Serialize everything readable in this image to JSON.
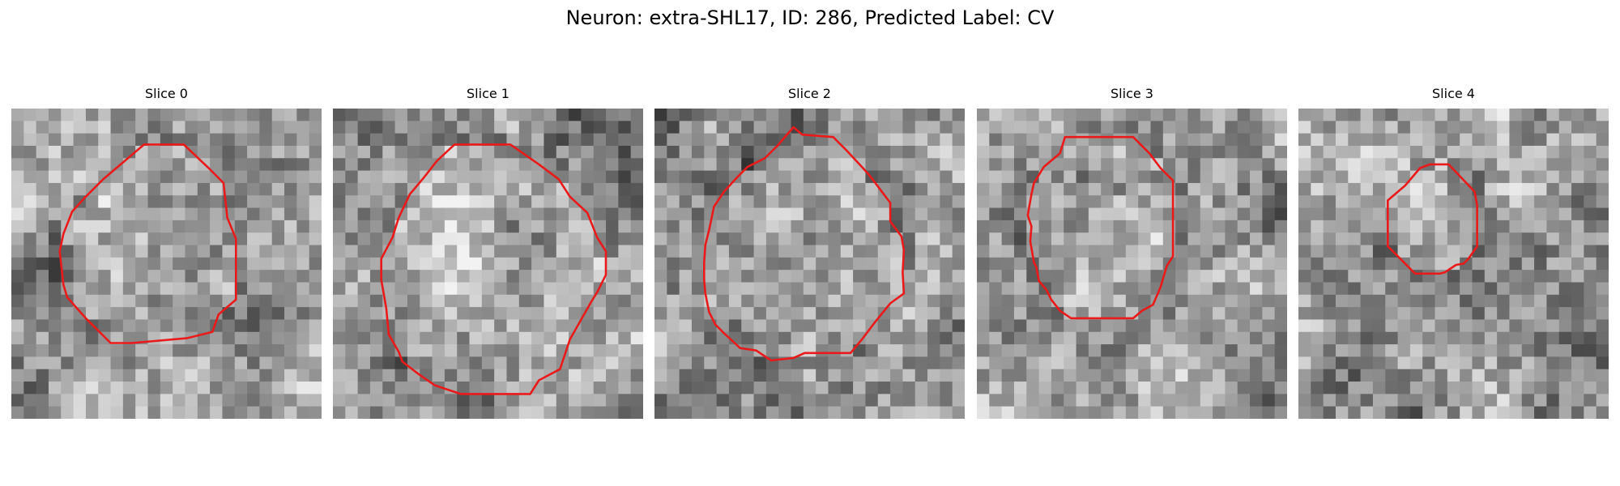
{
  "figure": {
    "title": "Neuron: extra-SHL17, ID: 286, Predicted Label: CV"
  },
  "panels": [
    {
      "title": "Slice 0",
      "seed": 11,
      "contour": [
        [
          10.7,
          2.9
        ],
        [
          13.9,
          2.9
        ],
        [
          15.9,
          4.8
        ],
        [
          17.1,
          6.0
        ],
        [
          17.4,
          8.8
        ],
        [
          18.1,
          10.5
        ],
        [
          18.1,
          15.4
        ],
        [
          16.7,
          16.6
        ],
        [
          16.2,
          18.0
        ],
        [
          14.2,
          18.5
        ],
        [
          9.7,
          18.9
        ],
        [
          8.0,
          18.9
        ],
        [
          6.0,
          16.9
        ],
        [
          4.5,
          15.2
        ],
        [
          4.2,
          14.2
        ],
        [
          3.9,
          11.5
        ],
        [
          4.2,
          10.1
        ],
        [
          4.9,
          8.3
        ],
        [
          5.9,
          7.2
        ],
        [
          7.4,
          5.7
        ]
      ]
    },
    {
      "title": "Slice 1",
      "seed": 23,
      "contour": [
        [
          9.8,
          2.9
        ],
        [
          14.3,
          2.9
        ],
        [
          16.6,
          4.5
        ],
        [
          18.2,
          5.7
        ],
        [
          19.1,
          7.1
        ],
        [
          20.5,
          8.4
        ],
        [
          21.3,
          10.4
        ],
        [
          22.0,
          11.5
        ],
        [
          22.0,
          13.4
        ],
        [
          21.3,
          14.8
        ],
        [
          20.8,
          15.6
        ],
        [
          19.1,
          18.6
        ],
        [
          18.3,
          21.0
        ],
        [
          16.6,
          21.9
        ],
        [
          15.9,
          23.0
        ],
        [
          12.6,
          23.0
        ],
        [
          10.3,
          23.0
        ],
        [
          8.2,
          22.3
        ],
        [
          6.9,
          21.4
        ],
        [
          5.6,
          20.4
        ],
        [
          5.3,
          19.6
        ],
        [
          4.5,
          18.2
        ],
        [
          4.3,
          16.1
        ],
        [
          3.9,
          13.8
        ],
        [
          3.9,
          12.1
        ],
        [
          4.8,
          10.4
        ],
        [
          5.3,
          8.8
        ],
        [
          6.2,
          6.9
        ],
        [
          7.3,
          5.6
        ],
        [
          8.4,
          4.2
        ]
      ]
    },
    {
      "title": "Slice 2",
      "seed": 37,
      "contour": [
        [
          11.2,
          1.5
        ],
        [
          11.9,
          2.1
        ],
        [
          14.4,
          2.3
        ],
        [
          15.5,
          3.4
        ],
        [
          16.9,
          4.9
        ],
        [
          17.5,
          5.6
        ],
        [
          18.4,
          6.8
        ],
        [
          19.0,
          7.6
        ],
        [
          19.0,
          9.1
        ],
        [
          19.9,
          10.3
        ],
        [
          20.1,
          11.4
        ],
        [
          20.0,
          13.2
        ],
        [
          20.1,
          14.9
        ],
        [
          19.0,
          15.7
        ],
        [
          17.7,
          17.3
        ],
        [
          16.8,
          18.5
        ],
        [
          15.8,
          19.7
        ],
        [
          13.9,
          19.7
        ],
        [
          12.1,
          19.7
        ],
        [
          11.2,
          20.1
        ],
        [
          9.4,
          20.3
        ],
        [
          8.2,
          19.5
        ],
        [
          6.9,
          19.3
        ],
        [
          5.6,
          18.1
        ],
        [
          4.9,
          17.4
        ],
        [
          4.4,
          16.4
        ],
        [
          4.1,
          14.9
        ],
        [
          4.0,
          13.8
        ],
        [
          4.0,
          12.4
        ],
        [
          4.1,
          11.0
        ],
        [
          4.4,
          9.8
        ],
        [
          4.8,
          7.9
        ],
        [
          5.6,
          6.7
        ],
        [
          6.7,
          5.5
        ],
        [
          7.5,
          4.7
        ],
        [
          8.9,
          4.0
        ],
        [
          9.9,
          3.0
        ]
      ]
    },
    {
      "title": "Slice 3",
      "seed": 51,
      "contour": [
        [
          7.1,
          2.3
        ],
        [
          12.6,
          2.3
        ],
        [
          13.9,
          3.6
        ],
        [
          14.8,
          4.8
        ],
        [
          15.8,
          5.8
        ],
        [
          15.8,
          11.9
        ],
        [
          15.3,
          12.7
        ],
        [
          14.8,
          14.4
        ],
        [
          14.2,
          15.8
        ],
        [
          13.3,
          16.3
        ],
        [
          12.6,
          16.9
        ],
        [
          9.4,
          16.9
        ],
        [
          7.6,
          16.9
        ],
        [
          6.7,
          16.3
        ],
        [
          6.0,
          15.4
        ],
        [
          5.6,
          14.6
        ],
        [
          5.0,
          13.9
        ],
        [
          4.8,
          12.8
        ],
        [
          4.6,
          12.4
        ],
        [
          4.3,
          10.7
        ],
        [
          4.4,
          9.5
        ],
        [
          4.1,
          8.6
        ],
        [
          4.4,
          6.9
        ],
        [
          4.6,
          6.0
        ],
        [
          5.4,
          4.7
        ],
        [
          6.7,
          3.6
        ]
      ]
    },
    {
      "title": "Slice 4",
      "seed": 67,
      "contour": [
        [
          10.6,
          4.5
        ],
        [
          12.1,
          4.5
        ],
        [
          14.2,
          6.7
        ],
        [
          14.4,
          7.8
        ],
        [
          14.4,
          11.1
        ],
        [
          13.7,
          12.1
        ],
        [
          13.3,
          12.5
        ],
        [
          12.7,
          12.6
        ],
        [
          11.8,
          13.2
        ],
        [
          11.4,
          13.3
        ],
        [
          9.4,
          13.3
        ],
        [
          7.8,
          11.7
        ],
        [
          7.2,
          11.1
        ],
        [
          7.2,
          7.4
        ],
        [
          8.6,
          6.2
        ],
        [
          9.8,
          4.8
        ]
      ]
    }
  ]
}
